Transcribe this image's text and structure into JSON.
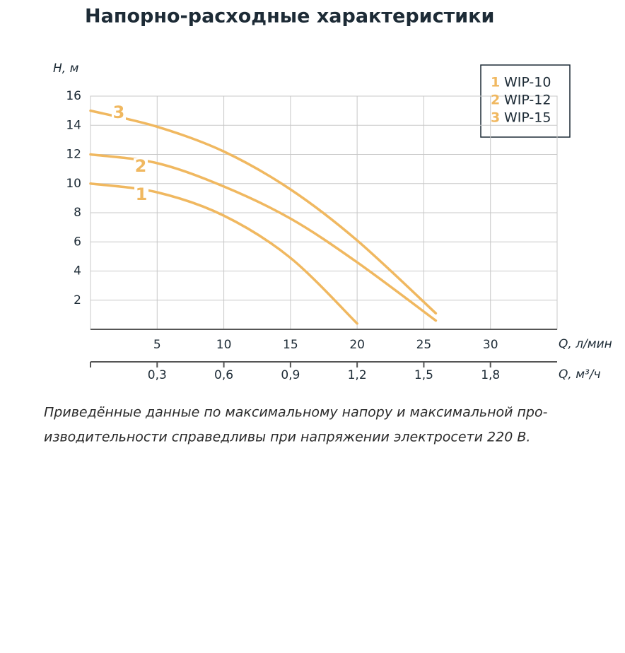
{
  "chart_data": {
    "type": "line",
    "title": "Напорно-расходные характеристики",
    "y_label": "H, м",
    "x_label": "Q, л/мин",
    "x2_label": "Q, м³/ч",
    "xlim": [
      0,
      35
    ],
    "xticks": [
      5,
      10,
      15,
      20,
      25,
      30
    ],
    "x2lim": [
      0,
      2.1
    ],
    "x2ticks": [
      {
        "value": 0.3,
        "label": "0,3"
      },
      {
        "value": 0.6,
        "label": "0,6"
      },
      {
        "value": 0.9,
        "label": "0,9"
      },
      {
        "value": 1.2,
        "label": "1,2"
      },
      {
        "value": 1.5,
        "label": "1,5"
      },
      {
        "value": 1.8,
        "label": "1,8"
      }
    ],
    "ylim": [
      0,
      16
    ],
    "yticks": [
      2,
      4,
      6,
      8,
      10,
      12,
      14,
      16
    ],
    "grid": true,
    "series": [
      {
        "name": "WIP-10",
        "label": "1",
        "color": "#f0b860",
        "x": [
          0,
          5,
          10,
          15,
          20
        ],
        "values": [
          10,
          9.4,
          7.8,
          4.9,
          0.4
        ]
      },
      {
        "name": "WIP-12",
        "label": "2",
        "color": "#f0b860",
        "x": [
          0,
          5,
          10,
          15,
          20,
          25.9
        ],
        "values": [
          12,
          11.4,
          9.8,
          7.6,
          4.6,
          0.6
        ]
      },
      {
        "name": "WIP-15",
        "label": "3",
        "color": "#f0b860",
        "x": [
          0,
          5,
          10,
          15,
          20,
          25.9
        ],
        "values": [
          15,
          13.9,
          12.2,
          9.6,
          6.1,
          1.1
        ]
      }
    ],
    "note_lines": [
      "Приведённые данные по максимальному напору и максимальной про-",
      "изводительности справедливы при напряжении электросети 220 В."
    ]
  }
}
